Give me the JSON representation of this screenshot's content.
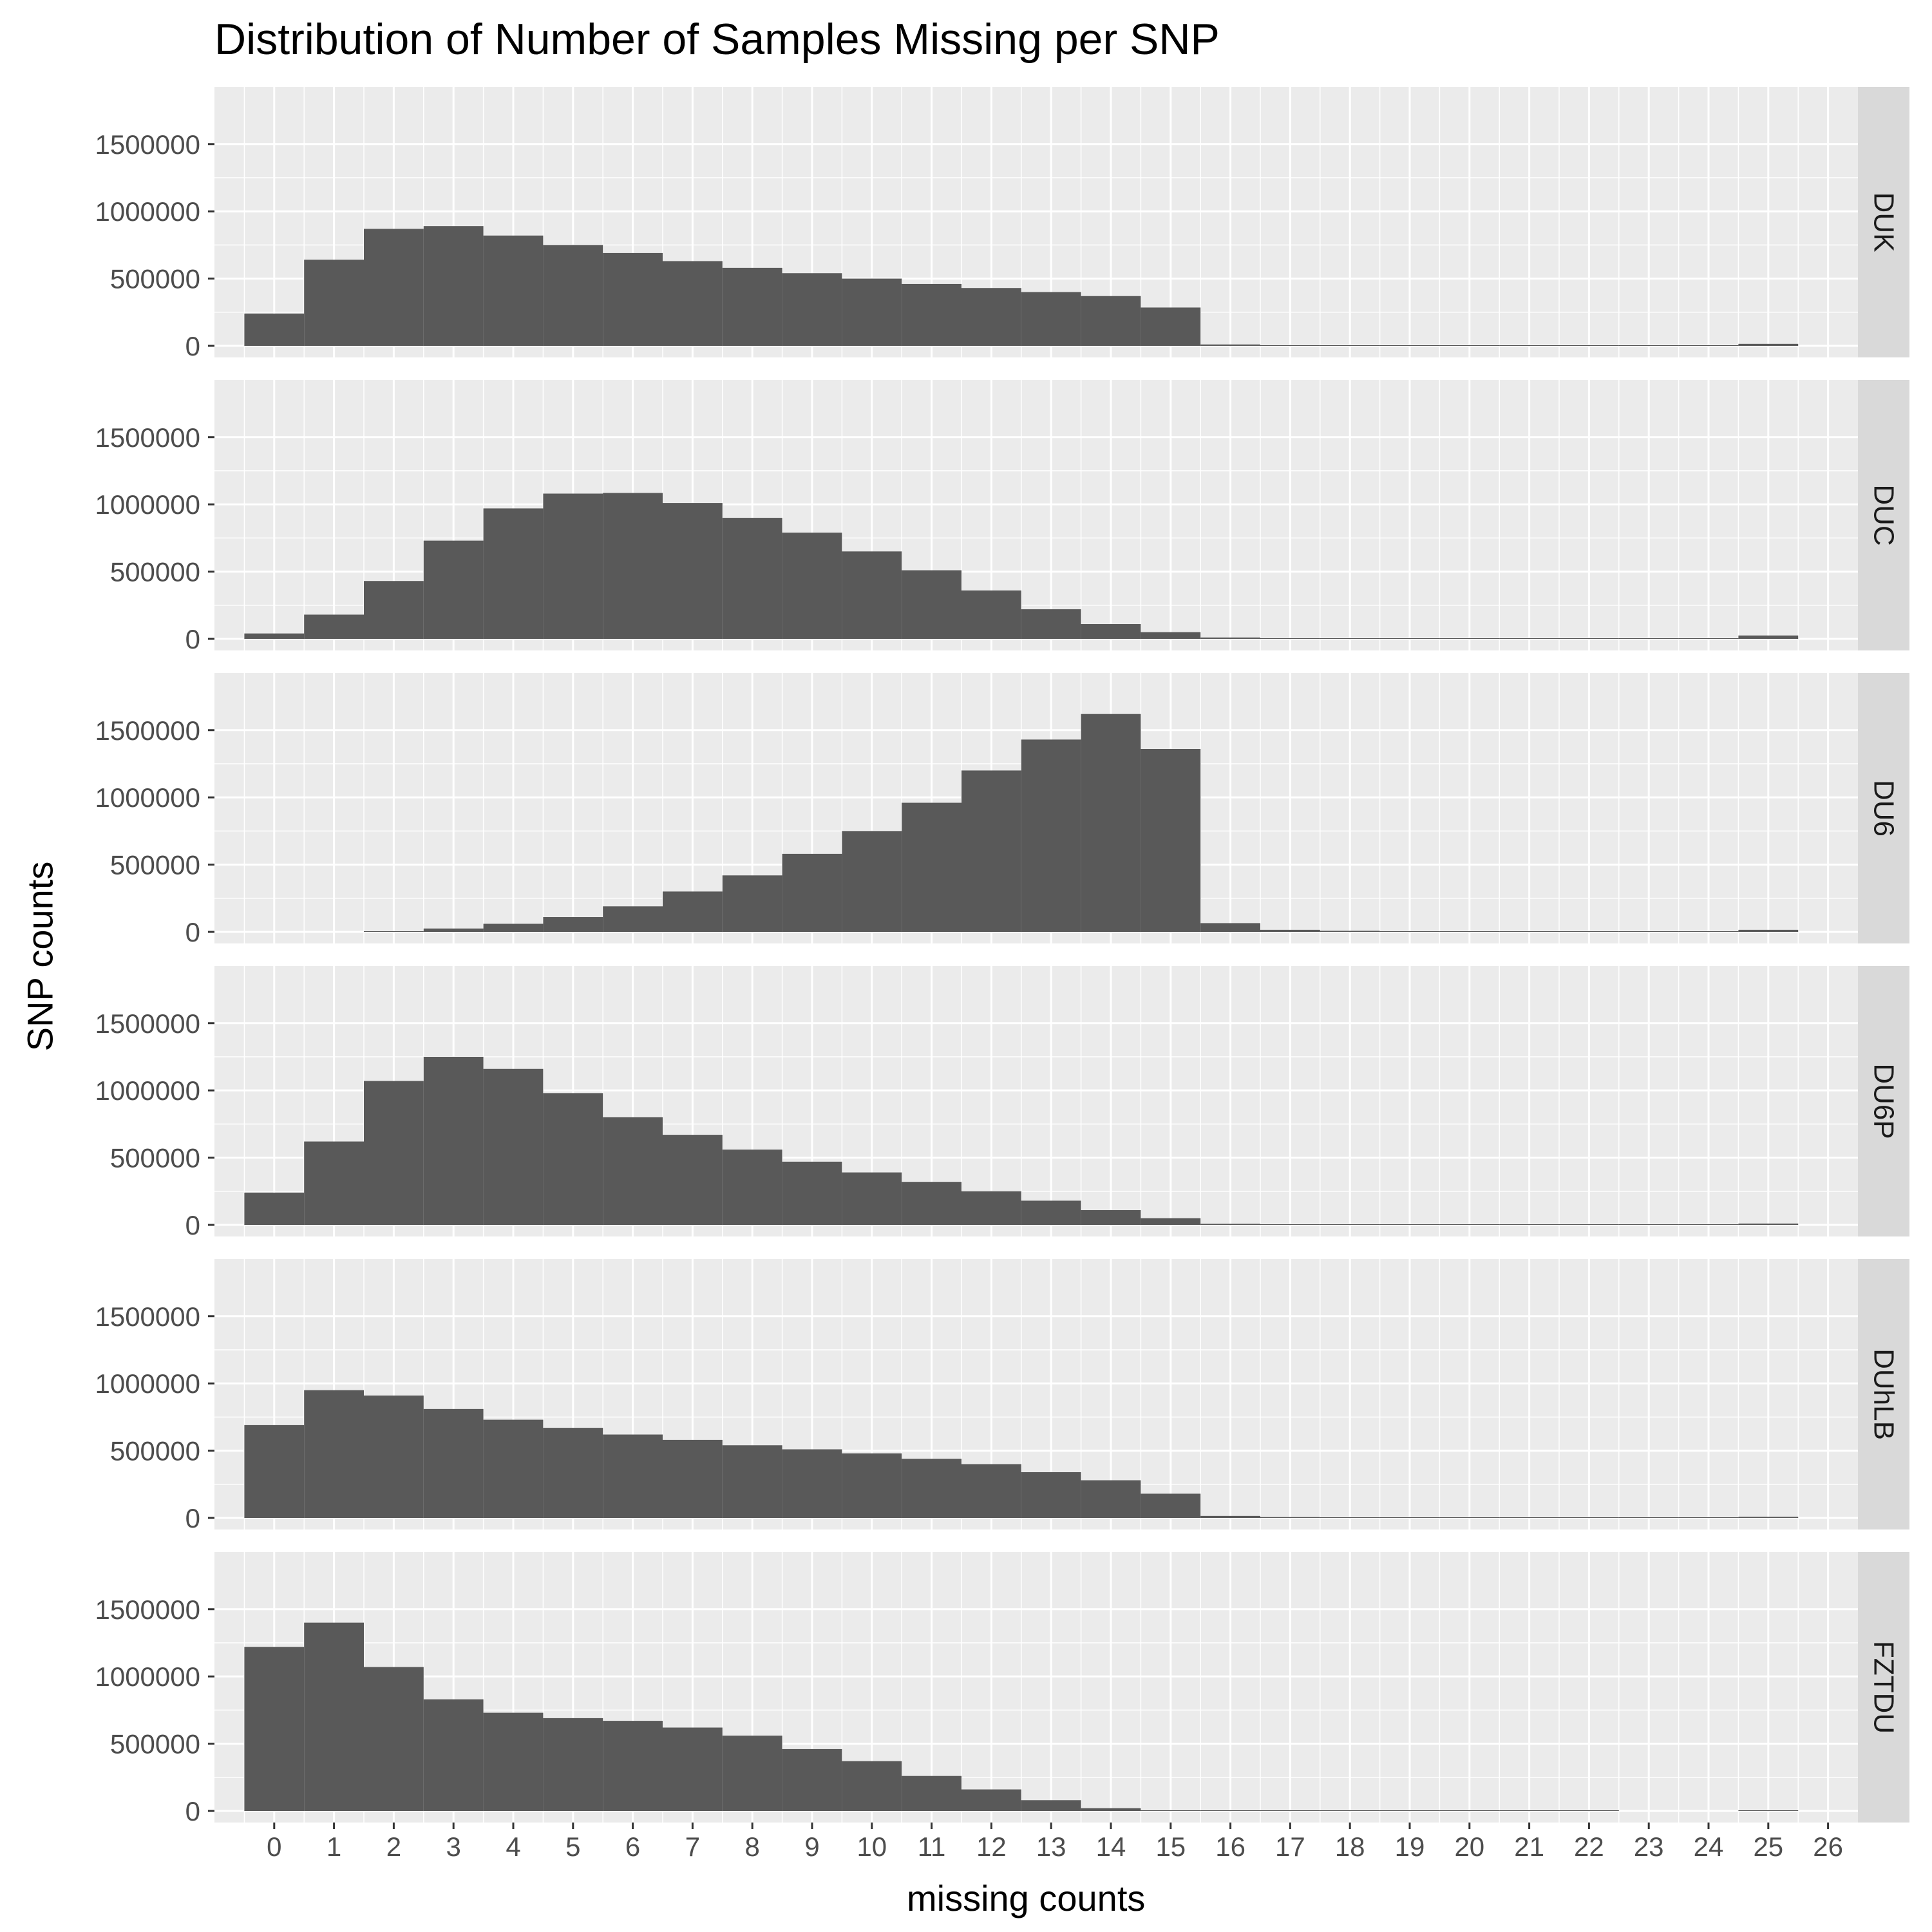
{
  "chart_data": {
    "type": "bar",
    "title": "Distribution of Number of Samples Missing per SNP",
    "xlabel": "missing counts",
    "ylabel": "SNP counts",
    "x_ticks": [
      "0",
      "1",
      "2",
      "3",
      "4",
      "5",
      "6",
      "7",
      "8",
      "9",
      "10",
      "11",
      "12",
      "13",
      "14",
      "15",
      "16",
      "17",
      "18",
      "19",
      "20",
      "21",
      "22",
      "23",
      "24",
      "25",
      "26"
    ],
    "y_ticks": [
      "0",
      "500000",
      "1000000",
      "1500000"
    ],
    "ylim": [
      0,
      1700000
    ],
    "xlim": [
      -1,
      26.5
    ],
    "grid": true,
    "facet_direction": "rows",
    "categories": [
      0,
      1,
      2,
      3,
      4,
      5,
      6,
      7,
      8,
      9,
      10,
      11,
      12,
      13,
      14,
      15,
      16,
      17,
      18,
      19,
      20,
      21,
      22,
      23,
      24,
      25
    ],
    "series": [
      {
        "name": "DUK",
        "values": [
          240000,
          640000,
          870000,
          890000,
          820000,
          750000,
          690000,
          630000,
          580000,
          540000,
          500000,
          460000,
          430000,
          400000,
          370000,
          285000,
          10000,
          5000,
          3000,
          2000,
          2000,
          2000,
          1500,
          1500,
          1500,
          15000
        ]
      },
      {
        "name": "DUC",
        "values": [
          40000,
          180000,
          430000,
          730000,
          970000,
          1080000,
          1085000,
          1010000,
          900000,
          790000,
          650000,
          510000,
          360000,
          220000,
          110000,
          50000,
          10000,
          5000,
          3000,
          2000,
          2000,
          2000,
          1500,
          1500,
          1500,
          25000
        ]
      },
      {
        "name": "DU6",
        "values": [
          0,
          0,
          5000,
          25000,
          60000,
          110000,
          190000,
          300000,
          420000,
          580000,
          750000,
          960000,
          1200000,
          1430000,
          1620000,
          1360000,
          65000,
          15000,
          8000,
          5000,
          4000,
          3000,
          2000,
          2000,
          2000,
          15000
        ]
      },
      {
        "name": "DU6P",
        "values": [
          240000,
          620000,
          1070000,
          1250000,
          1160000,
          980000,
          800000,
          670000,
          560000,
          470000,
          390000,
          320000,
          250000,
          180000,
          110000,
          50000,
          8000,
          4000,
          2000,
          1500,
          1500,
          1500,
          1000,
          1000,
          1000,
          10000
        ]
      },
      {
        "name": "DUhLB",
        "values": [
          690000,
          950000,
          910000,
          810000,
          730000,
          670000,
          620000,
          580000,
          540000,
          510000,
          480000,
          440000,
          400000,
          340000,
          280000,
          180000,
          15000,
          6000,
          3000,
          2000,
          2000,
          2000,
          1500,
          1500,
          1500,
          8000
        ]
      },
      {
        "name": "FZTDU",
        "values": [
          1220000,
          1400000,
          1070000,
          830000,
          730000,
          690000,
          670000,
          620000,
          560000,
          460000,
          370000,
          260000,
          160000,
          80000,
          20000,
          5000,
          3000,
          2000,
          1500,
          1000,
          1000,
          1000,
          800,
          0,
          0,
          3000
        ]
      }
    ]
  },
  "colors": {
    "bar": "#595959",
    "panel_background": "#ebebeb",
    "grid_line": "#ffffff",
    "strip_background": "#d9d9d9",
    "axis_text": "#4d4d4d",
    "strip_text": "#1a1a1a"
  }
}
